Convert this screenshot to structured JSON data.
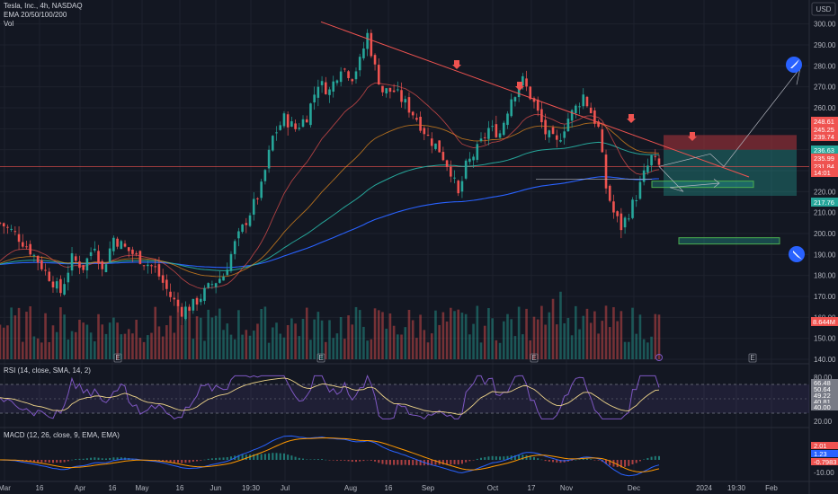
{
  "header": {
    "symbol": "Tesla, Inc., 4h, NASDAQ",
    "ema_title": "EMA 20/50/100/200",
    "vol_title": "Vol",
    "currency_button": "USD"
  },
  "panes": {
    "rsi_title": "RSI (14, close, SMA, 14, 2)",
    "macd_title": "MACD (12, 26, close, 9, EMA, EMA)"
  },
  "colors": {
    "background": "#131722",
    "up": "#26a69a",
    "down": "#ef5350",
    "ema20": "#ef5350",
    "ema50": "#f7941d",
    "ema100": "#26a69a",
    "ema200": "#2962ff",
    "trendline": "#ef5350",
    "rsi": "#7e57c2",
    "rsi_ma": "#f0d68a",
    "macd": "#2962ff",
    "signal": "#ff9800",
    "zone_green": "#26a69a",
    "zone_red": "#b2343c"
  },
  "chart_data": {
    "type": "candlestick",
    "title": "Tesla, Inc., 4h, NASDAQ",
    "price_ticks": [
      "300.00",
      "290.00",
      "280.00",
      "270.00",
      "260.00",
      "250.00",
      "240.00",
      "230.00",
      "220.00",
      "210.00",
      "200.00",
      "190.00",
      "180.00",
      "170.00",
      "160.00",
      "150.00",
      "140.00"
    ],
    "ylim": [
      140,
      305
    ],
    "x_labels": [
      "Mar",
      "16",
      "Apr",
      "16",
      "May",
      "16",
      "Jun",
      "19:30",
      "Jul",
      "Aug",
      "16",
      "Sep",
      "Oct",
      "17",
      "Nov",
      "Dec",
      "2024",
      "19:30",
      "Feb"
    ],
    "price_tags": [
      {
        "label": "248.61",
        "value": 248.61,
        "color": "#ef5350"
      },
      {
        "label": "245.25",
        "value": 245.25,
        "color": "#ef5350"
      },
      {
        "label": "239.74",
        "value": 239.74,
        "color": "#ef5350"
      },
      {
        "label": "236.63",
        "value": 236.63,
        "color": "#26a69a"
      },
      {
        "label": "235.99",
        "value": 235.99,
        "color": "#ef5350"
      },
      {
        "label": "231.84",
        "value": 231.84,
        "color": "#ef5350"
      },
      {
        "label": "14:01",
        "value": 228.5,
        "color": "#ef5350"
      },
      {
        "label": "217.76",
        "value": 217.76,
        "color": "#26a69a"
      }
    ],
    "volume_tag": "8.644M",
    "events": [
      "E",
      "E",
      "E",
      "E"
    ],
    "rsi": {
      "ticks": [
        "80.00",
        "20.00"
      ],
      "tags": [
        {
          "label": "66.48",
          "color": "#787b86"
        },
        {
          "label": "50.64",
          "color": "#787b86"
        },
        {
          "label": "49.22",
          "color": "#787b86"
        },
        {
          "label": "40.81",
          "color": "#787b86"
        },
        {
          "label": "40.00",
          "color": "#787b86"
        }
      ]
    },
    "macd": {
      "tags": [
        {
          "label": "2.01",
          "color": "#ef5350"
        },
        {
          "label": "1.23",
          "color": "#2962ff"
        },
        {
          "label": "-0.7983",
          "color": "#ef5350"
        }
      ],
      "ticks": [
        "-10.00"
      ]
    },
    "trend_line": {
      "start": {
        "x_label": "Jul",
        "y": 301
      },
      "end": {
        "x_label": "Dec",
        "y": 232
      }
    },
    "zones": [
      {
        "type": "target-up",
        "top": 247,
        "bottom": 218
      },
      {
        "type": "target-down",
        "top": 225,
        "bottom": 222
      },
      {
        "type": "target-down",
        "top": 198,
        "bottom": 195
      }
    ]
  }
}
